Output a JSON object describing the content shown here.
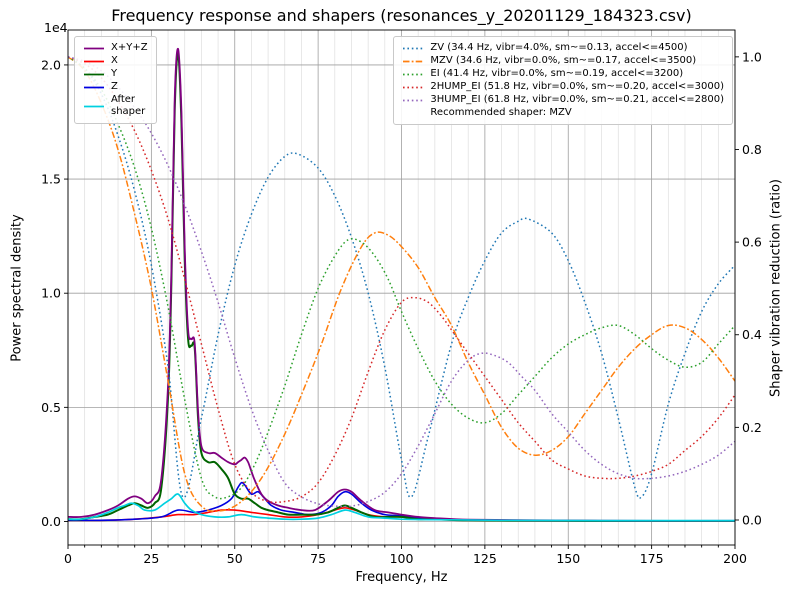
{
  "chart_data": {
    "type": "line",
    "title": "Frequency response and shapers (resonances_y_20201129_184323.csv)",
    "xlabel": "Frequency, Hz",
    "ylabel_left": "Power spectral density",
    "ylabel_right": "Shaper vibration reduction (ratio)",
    "left_offset_text": "1e4",
    "psd_unit_scale": 10000,
    "xlim": [
      0,
      200
    ],
    "ylim_left": [
      -0.103,
      2.153
    ],
    "ylim_right": [
      -0.054,
      1.058
    ],
    "x_ticks": [
      "0",
      "25",
      "50",
      "75",
      "100",
      "125",
      "150",
      "175",
      "200"
    ],
    "y_ticks_left": [
      "0.0",
      "0.5",
      "1.0",
      "1.5",
      "2.0"
    ],
    "y_ticks_right": [
      "0.0",
      "0.2",
      "0.4",
      "0.6",
      "0.8",
      "1.0"
    ],
    "grid": true,
    "recommended_shaper": "MZV",
    "psd_series": [
      {
        "name": "x",
        "label": "X",
        "color": "#ff0000",
        "lw": 1.6,
        "x": [
          0,
          10,
          20,
          28,
          33,
          38,
          42,
          46,
          50,
          55,
          60,
          65,
          70,
          75,
          80,
          83,
          86,
          90,
          95,
          100,
          110,
          120,
          140,
          170,
          200
        ],
        "y": [
          0.005,
          0.005,
          0.01,
          0.02,
          0.03,
          0.03,
          0.04,
          0.05,
          0.05,
          0.04,
          0.03,
          0.02,
          0.02,
          0.03,
          0.05,
          0.06,
          0.05,
          0.03,
          0.02,
          0.02,
          0.01,
          0.006,
          0.004,
          0.003,
          0.003
        ]
      },
      {
        "name": "z",
        "label": "Z",
        "color": "#0000e0",
        "lw": 1.6,
        "x": [
          0,
          10,
          20,
          28,
          33,
          38,
          42,
          46,
          49,
          51,
          52,
          53,
          55,
          57,
          59,
          61,
          64,
          68,
          72,
          76,
          79,
          81,
          83,
          85,
          88,
          91,
          95,
          100,
          105,
          110,
          120,
          140,
          170,
          200
        ],
        "y": [
          0.005,
          0.005,
          0.01,
          0.02,
          0.05,
          0.04,
          0.05,
          0.07,
          0.1,
          0.15,
          0.17,
          0.16,
          0.12,
          0.13,
          0.1,
          0.07,
          0.05,
          0.04,
          0.03,
          0.04,
          0.07,
          0.11,
          0.13,
          0.12,
          0.08,
          0.05,
          0.03,
          0.025,
          0.015,
          0.01,
          0.006,
          0.004,
          0.003,
          0.003
        ]
      },
      {
        "name": "y",
        "label": "Y",
        "color": "#006400",
        "lw": 2.0,
        "x": [
          0,
          4,
          8,
          12,
          15,
          18,
          20,
          22,
          24,
          26,
          28,
          30,
          31,
          32,
          33,
          34,
          35,
          36,
          37,
          38,
          39,
          40,
          42,
          44,
          46,
          48,
          50,
          52,
          54,
          56,
          58,
          60,
          63,
          66,
          70,
          74,
          78,
          81,
          83,
          85,
          88,
          92,
          96,
          100,
          105,
          110,
          120,
          140,
          170,
          200
        ],
        "y": [
          0.01,
          0.01,
          0.02,
          0.03,
          0.05,
          0.07,
          0.08,
          0.07,
          0.06,
          0.08,
          0.15,
          0.55,
          1.05,
          1.8,
          2.05,
          1.75,
          1.15,
          0.8,
          0.77,
          0.76,
          0.45,
          0.3,
          0.26,
          0.26,
          0.23,
          0.19,
          0.12,
          0.1,
          0.1,
          0.08,
          0.06,
          0.05,
          0.04,
          0.03,
          0.03,
          0.03,
          0.04,
          0.06,
          0.07,
          0.06,
          0.04,
          0.02,
          0.02,
          0.02,
          0.01,
          0.01,
          0.005,
          0.003,
          0.002,
          0.002
        ]
      },
      {
        "name": "sum",
        "label": "X+Y+Z",
        "color": "#800080",
        "lw": 1.8,
        "x": [
          0,
          4,
          8,
          12,
          15,
          18,
          20,
          22,
          24,
          26,
          28,
          30,
          31,
          32,
          33,
          34,
          35,
          36,
          37,
          38,
          39,
          40,
          42,
          44,
          46,
          48,
          50,
          51,
          52,
          53,
          54,
          55,
          56,
          58,
          60,
          63,
          66,
          70,
          74,
          78,
          81,
          83,
          85,
          88,
          92,
          96,
          100,
          105,
          110,
          120,
          140,
          170,
          200
        ],
        "y": [
          0.02,
          0.02,
          0.03,
          0.05,
          0.07,
          0.1,
          0.11,
          0.1,
          0.08,
          0.11,
          0.19,
          0.6,
          1.1,
          1.85,
          2.07,
          1.8,
          1.2,
          0.84,
          0.8,
          0.78,
          0.48,
          0.33,
          0.3,
          0.3,
          0.28,
          0.26,
          0.25,
          0.26,
          0.27,
          0.28,
          0.26,
          0.22,
          0.18,
          0.12,
          0.09,
          0.07,
          0.06,
          0.05,
          0.05,
          0.09,
          0.13,
          0.14,
          0.13,
          0.09,
          0.05,
          0.04,
          0.03,
          0.02,
          0.015,
          0.008,
          0.005,
          0.003,
          0.003
        ]
      },
      {
        "name": "after_shaper",
        "label": "After\nshaper",
        "color": "#00d0e0",
        "lw": 1.7,
        "x": [
          0,
          4,
          8,
          12,
          15,
          17,
          19,
          21,
          23,
          26,
          29,
          31,
          33,
          35,
          37,
          40,
          44,
          48,
          52,
          56,
          60,
          65,
          70,
          75,
          79,
          83,
          86,
          90,
          95,
          100,
          110,
          130,
          160,
          200
        ],
        "y": [
          0.01,
          0.01,
          0.02,
          0.04,
          0.06,
          0.07,
          0.08,
          0.07,
          0.05,
          0.05,
          0.08,
          0.1,
          0.12,
          0.08,
          0.05,
          0.03,
          0.02,
          0.02,
          0.03,
          0.02,
          0.015,
          0.01,
          0.01,
          0.015,
          0.03,
          0.05,
          0.04,
          0.02,
          0.015,
          0.01,
          0.008,
          0.005,
          0.004,
          0.004
        ]
      }
    ],
    "shaper_series": [
      {
        "name": "ZV",
        "label": "ZV (34.4 Hz, vibr=4.0%, sm~=0.13, accel<=4500)",
        "color": "#1f77b4",
        "dash": "dotted",
        "freq_hz": 34.4,
        "x": [
          0,
          5,
          10,
          15,
          20,
          25,
          30,
          34.4,
          40,
          45,
          50,
          55,
          60,
          65,
          69,
          75,
          80,
          85,
          90,
          95,
          100,
          103,
          108,
          115,
          120,
          125,
          130,
          135,
          138,
          145,
          150,
          155,
          160,
          165,
          170,
          172,
          175,
          180,
          185,
          190,
          195,
          200
        ],
        "y": [
          1.0,
          0.975,
          0.92,
          0.83,
          0.71,
          0.55,
          0.33,
          0.05,
          0.22,
          0.4,
          0.55,
          0.66,
          0.74,
          0.785,
          0.79,
          0.76,
          0.7,
          0.61,
          0.49,
          0.33,
          0.13,
          0.05,
          0.18,
          0.38,
          0.48,
          0.56,
          0.62,
          0.645,
          0.65,
          0.62,
          0.56,
          0.47,
          0.36,
          0.22,
          0.07,
          0.05,
          0.1,
          0.25,
          0.36,
          0.45,
          0.51,
          0.55
        ]
      },
      {
        "name": "MZV",
        "label": "MZV (34.6 Hz, vibr=0.0%, sm~=0.17, accel<=3500)",
        "color": "#ff7f0e",
        "dash": "dashdot",
        "freq_hz": 34.6,
        "x": [
          0,
          5,
          10,
          15,
          20,
          25,
          30,
          35,
          40,
          46,
          52,
          58,
          64,
          70,
          76,
          82,
          88,
          92,
          96,
          100,
          105,
          110,
          115,
          120,
          125,
          130,
          135,
          140,
          145,
          150,
          155,
          160,
          165,
          170,
          175,
          180,
          185,
          190,
          195,
          200
        ],
        "y": [
          1.0,
          0.97,
          0.9,
          0.8,
          0.66,
          0.5,
          0.3,
          0.1,
          0.03,
          0.02,
          0.04,
          0.09,
          0.17,
          0.27,
          0.38,
          0.5,
          0.59,
          0.62,
          0.615,
          0.59,
          0.545,
          0.48,
          0.42,
          0.34,
          0.27,
          0.2,
          0.155,
          0.14,
          0.15,
          0.18,
          0.23,
          0.28,
          0.33,
          0.37,
          0.4,
          0.42,
          0.415,
          0.39,
          0.35,
          0.3
        ]
      },
      {
        "name": "EI",
        "label": "EI (41.4 Hz, vibr=0.0%, sm~=0.19, accel<=3200)",
        "color": "#2ca02c",
        "dash": "dotted",
        "freq_hz": 41.4,
        "x": [
          0,
          5,
          10,
          15,
          20,
          25,
          30,
          35,
          40,
          44,
          48,
          52,
          56,
          60,
          65,
          70,
          75,
          80,
          84,
          88,
          92,
          96,
          100,
          105,
          110,
          115,
          120,
          125,
          130,
          135,
          140,
          145,
          150,
          155,
          160,
          165,
          170,
          175,
          180,
          185,
          190,
          195,
          200
        ],
        "y": [
          1.0,
          0.975,
          0.93,
          0.855,
          0.76,
          0.63,
          0.46,
          0.26,
          0.09,
          0.05,
          0.05,
          0.07,
          0.12,
          0.19,
          0.29,
          0.4,
          0.5,
          0.57,
          0.605,
          0.6,
          0.57,
          0.52,
          0.45,
          0.37,
          0.3,
          0.25,
          0.22,
          0.21,
          0.23,
          0.27,
          0.31,
          0.35,
          0.38,
          0.4,
          0.415,
          0.42,
          0.4,
          0.37,
          0.345,
          0.33,
          0.34,
          0.38,
          0.42
        ]
      },
      {
        "name": "2HUMP_EI",
        "label": "2HUMP_EI (51.8 Hz, vibr=0.0%, sm~=0.20, accel<=3000)",
        "color": "#d62728",
        "dash": "dotted",
        "freq_hz": 51.8,
        "x": [
          0,
          5,
          10,
          15,
          20,
          25,
          30,
          35,
          40,
          45,
          50,
          55,
          60,
          65,
          70,
          75,
          80,
          85,
          90,
          95,
          100,
          104,
          108,
          112,
          116,
          120,
          125,
          130,
          135,
          140,
          145,
          150,
          155,
          160,
          165,
          170,
          175,
          180,
          185,
          190,
          195,
          200
        ],
        "y": [
          1.0,
          0.985,
          0.955,
          0.905,
          0.84,
          0.755,
          0.65,
          0.52,
          0.38,
          0.24,
          0.12,
          0.06,
          0.04,
          0.04,
          0.05,
          0.08,
          0.14,
          0.22,
          0.32,
          0.41,
          0.47,
          0.48,
          0.47,
          0.44,
          0.4,
          0.36,
          0.31,
          0.26,
          0.21,
          0.17,
          0.13,
          0.11,
          0.095,
          0.09,
          0.09,
          0.095,
          0.105,
          0.12,
          0.15,
          0.18,
          0.22,
          0.27
        ]
      },
      {
        "name": "3HUMP_EI",
        "label": "3HUMP_EI (61.8 Hz, vibr=0.0%, sm~=0.21, accel<=2800)",
        "color": "#9467bd",
        "dash": "dotted",
        "freq_hz": 61.8,
        "x": [
          0,
          5,
          10,
          15,
          20,
          25,
          30,
          35,
          40,
          45,
          50,
          55,
          60,
          65,
          70,
          75,
          80,
          85,
          90,
          95,
          100,
          105,
          110,
          115,
          120,
          124,
          128,
          132,
          136,
          140,
          145,
          150,
          155,
          160,
          165,
          170,
          175,
          180,
          185,
          190,
          195,
          200
        ],
        "y": [
          1.0,
          0.99,
          0.97,
          0.935,
          0.89,
          0.835,
          0.765,
          0.68,
          0.58,
          0.47,
          0.35,
          0.24,
          0.15,
          0.08,
          0.05,
          0.035,
          0.03,
          0.03,
          0.04,
          0.06,
          0.1,
          0.16,
          0.23,
          0.3,
          0.345,
          0.36,
          0.355,
          0.34,
          0.31,
          0.28,
          0.23,
          0.19,
          0.15,
          0.12,
          0.1,
          0.09,
          0.09,
          0.095,
          0.105,
          0.12,
          0.14,
          0.17
        ]
      }
    ],
    "legend_left": {
      "items": [
        {
          "name": "sum",
          "label": "X+Y+Z",
          "color": "#800080",
          "dash": "solid"
        },
        {
          "name": "x",
          "label": "X",
          "color": "#ff0000",
          "dash": "solid"
        },
        {
          "name": "y",
          "label": "Y",
          "color": "#006400",
          "dash": "solid"
        },
        {
          "name": "z",
          "label": "Z",
          "color": "#0000e0",
          "dash": "solid"
        },
        {
          "name": "after_shaper",
          "label": "After\nshaper",
          "color": "#00d0e0",
          "dash": "solid"
        }
      ]
    },
    "legend_right": {
      "items": [
        {
          "name": "ZV",
          "label": "ZV (34.4 Hz, vibr=4.0%, sm~=0.13, accel<=4500)",
          "color": "#1f77b4",
          "dash": "dotted"
        },
        {
          "name": "MZV",
          "label": "MZV (34.6 Hz, vibr=0.0%, sm~=0.17, accel<=3500)",
          "color": "#ff7f0e",
          "dash": "dashdot"
        },
        {
          "name": "EI",
          "label": "EI (41.4 Hz, vibr=0.0%, sm~=0.19, accel<=3200)",
          "color": "#2ca02c",
          "dash": "dotted"
        },
        {
          "name": "2HUMP_EI",
          "label": "2HUMP_EI (51.8 Hz, vibr=0.0%, sm~=0.20, accel<=3000)",
          "color": "#d62728",
          "dash": "dotted"
        },
        {
          "name": "3HUMP_EI",
          "label": "3HUMP_EI (61.8 Hz, vibr=0.0%, sm~=0.21, accel<=2800)",
          "color": "#9467bd",
          "dash": "dotted"
        }
      ],
      "note": "Recommended shaper: MZV"
    }
  }
}
